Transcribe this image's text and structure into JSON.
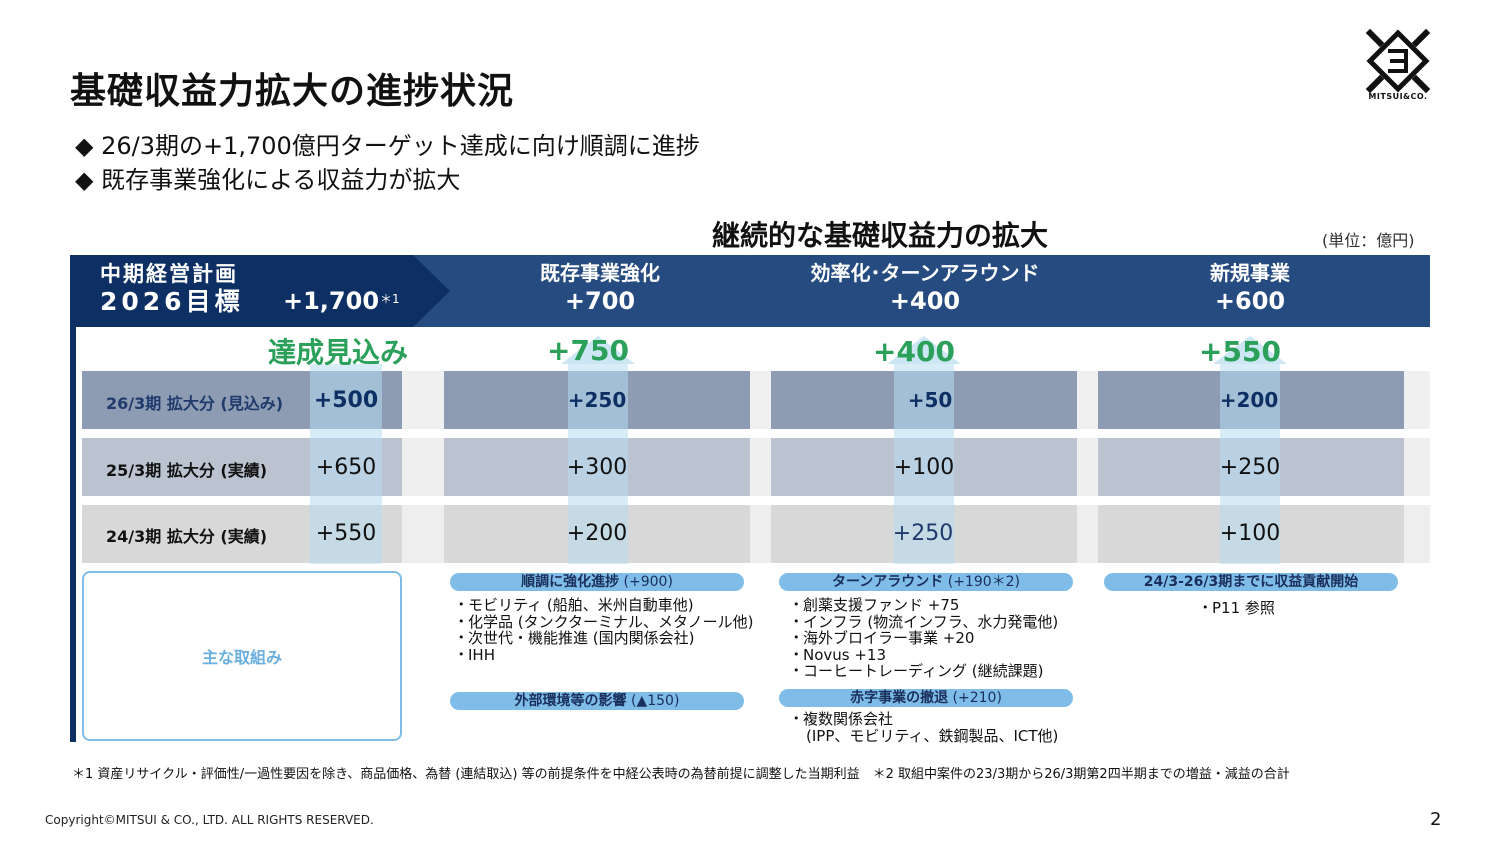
{
  "title": "基礎収益力拡大の進捗状況",
  "bullets": [
    "◆ 26/3期の+1,700億円ターゲット達成に向け順調に進捗",
    "◆ 既存事業強化による収益力が拡大"
  ],
  "logo_text": "MITSUI&CO.",
  "subtitle": "継続的な基礎収益力の拡大",
  "unit": "(単位：億円)",
  "header": {
    "plan_line1": "中期経営計画",
    "plan_line2": "2026目標",
    "plan_value": "+1,700",
    "plan_note": "＊1",
    "col1_title": "既存事業強化",
    "col1_value": "+700",
    "col2_title": "効率化･ターンアラウンド",
    "col2_value": "+400",
    "col3_title": "新規事業",
    "col3_value": "+600"
  },
  "expected": {
    "label": "達成見込み",
    "col1": "+750",
    "col2": "+400",
    "col3": "+550"
  },
  "rows": [
    {
      "label": "26/3期 拡大分 (見込み)",
      "total": "+500",
      "col1": "+250",
      "col2": "+50",
      "col3": "+200"
    },
    {
      "label": "25/3期 拡大分 (実績)",
      "total": "+650",
      "col1": "+300",
      "col2": "+100",
      "col3": "+250"
    },
    {
      "label": "24/3期  拡大分 (実績)",
      "total": "+550",
      "col1": "+200",
      "col2": "+250",
      "col3": "+100"
    }
  ],
  "initiatives_label": "主な取組み",
  "col1_pill1": {
    "main": "順調に強化進捗",
    "sub": " (+900)"
  },
  "col1_items": [
    "モビリティ (船舶、米州自動車他)",
    "化学品 (タンクターミナル、メタノール他)",
    "次世代・機能推進 (国内関係会社)",
    "IHH"
  ],
  "col1_pill2": {
    "main": "外部環境等の影響",
    "sub": " (▲150)"
  },
  "col2_pill1": {
    "main": "ターンアラウンド",
    "sub": " (+190＊2)"
  },
  "col2_items": [
    "創薬支援ファンド +75",
    "インフラ (物流インフラ、水力発電他)",
    "海外ブロイラー事業 +20",
    "Novus +13",
    "コーヒートレーディング (継続課題)"
  ],
  "col2_pill2": {
    "main": "赤字事業の撤退",
    "sub": " (+210)"
  },
  "col2_items2": [
    "複数関係会社"
  ],
  "col2_items2_cont": "(IPP、モビリティ、鉄鋼製品、ICT他)",
  "col3_pill1": {
    "main": "24/3-26/3期までに収益貢献開始",
    "sub": ""
  },
  "col3_items": [
    "P11 参照"
  ],
  "footnote": "＊1 資産リサイクル・評価性/一過性要因を除き、商品価格、為替 (連結取込) 等の前提条件を中経公表時の為替前提に調整した当期利益　＊2 取組中案件の23/3期から26/3期第2四半期までの増益・減益の合計",
  "copyright": "Copyright©MITSUI & CO., LTD. ALL RIGHTS RESERVED.",
  "page_number": "2",
  "colors": {
    "navy": "#0d2f63",
    "blue": "#254b80",
    "green": "#2aa05a",
    "pill": "#7fbde8"
  }
}
